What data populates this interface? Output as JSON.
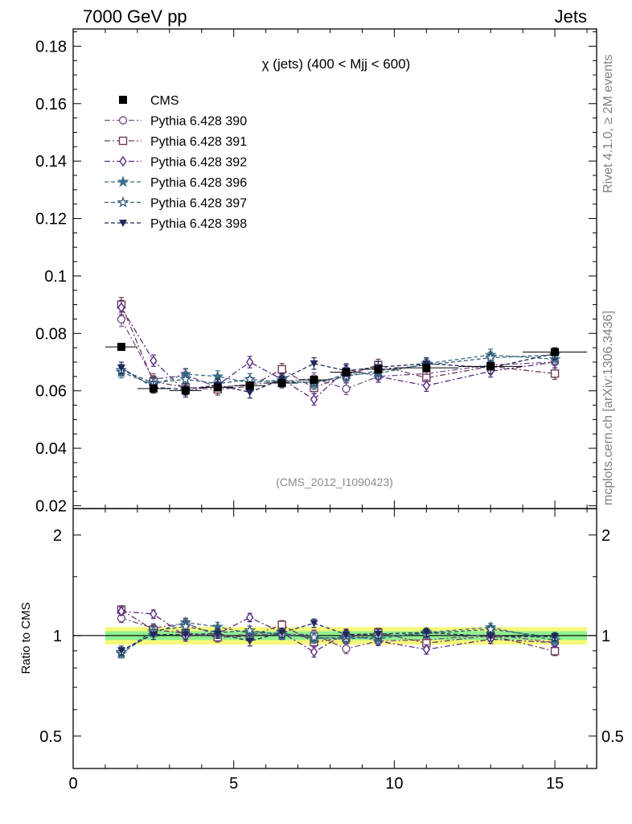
{
  "header": {
    "left": "7000 GeV pp",
    "right": "Jets"
  },
  "side_labels": {
    "rivet": "Rivet 4.1.0, ≥ 2M events",
    "source": "mcplots.cern.ch [arXiv:1306.3436]"
  },
  "colors": {
    "s390": "#7a4f86",
    "s391": "#6e3a5a",
    "s392": "#5a2a82",
    "s396": "#3d6d86",
    "s397": "#2f5a78",
    "s398": "#1f2a5a",
    "cms": "#000000",
    "band_inner": "#8ff08f",
    "band_outer": "#f4f97a"
  },
  "chart_data": [
    {
      "type": "line",
      "title": "χ (jets) (400 < Mjj <  600)",
      "watermark": "(CMS_2012_I1090423)",
      "xlim": [
        0,
        16.3
      ],
      "ylim": [
        0.019,
        0.186
      ],
      "ylabel": "",
      "yticks": [
        0.02,
        0.04,
        0.06,
        0.08,
        0.1,
        0.12,
        0.14,
        0.16,
        0.18
      ],
      "ytick_labels": [
        "0.02",
        "0.04",
        "0.06",
        "0.08",
        "0.1",
        "0.12",
        "0.14",
        "0.16",
        "0.18"
      ],
      "legend_position": "top-left",
      "x": [
        1.5,
        2.5,
        3.5,
        4.5,
        5.5,
        6.5,
        7.5,
        8.5,
        9.5,
        11,
        13,
        15
      ],
      "xerr": [
        0.5,
        0.5,
        0.5,
        0.5,
        0.5,
        0.5,
        0.5,
        0.5,
        0.5,
        1,
        1,
        1
      ],
      "cms": {
        "name": "CMS",
        "values": [
          0.0753,
          0.0608,
          0.0601,
          0.0612,
          0.0618,
          0.0627,
          0.0638,
          0.0665,
          0.0675,
          0.068,
          0.0685,
          0.0735
        ]
      },
      "series": [
        {
          "name": "Pythia 6.428 390",
          "key": "s390",
          "marker": "circle-open",
          "dash": "dashdot",
          "values": [
            0.0849,
            0.064,
            0.0655,
            0.0612,
            0.0622,
            0.0632,
            0.0643,
            0.0607,
            0.065,
            0.066,
            0.069,
            0.07
          ],
          "err": [
            0.0025,
            0.002,
            0.002,
            0.002,
            0.002,
            0.002,
            0.002,
            0.002,
            0.002,
            0.002,
            0.002,
            0.002
          ]
        },
        {
          "name": "Pythia 6.428 391",
          "key": "s391",
          "marker": "square-open",
          "dash": "dashdot",
          "values": [
            0.09,
            0.0632,
            0.0612,
            0.0605,
            0.0615,
            0.0675,
            0.061,
            0.0655,
            0.069,
            0.0645,
            0.0685,
            0.066
          ],
          "err": [
            0.0025,
            0.002,
            0.002,
            0.002,
            0.002,
            0.002,
            0.002,
            0.002,
            0.002,
            0.002,
            0.002,
            0.002
          ]
        },
        {
          "name": "Pythia 6.428 392",
          "key": "s392",
          "marker": "diamond-open",
          "dash": "dashdot",
          "values": [
            0.089,
            0.0705,
            0.0598,
            0.062,
            0.07,
            0.064,
            0.057,
            0.0675,
            0.065,
            0.0618,
            0.0668,
            0.07
          ],
          "err": [
            0.0025,
            0.002,
            0.002,
            0.002,
            0.002,
            0.002,
            0.002,
            0.002,
            0.002,
            0.002,
            0.002,
            0.002
          ]
        },
        {
          "name": "Pythia 6.428 396",
          "key": "s396",
          "marker": "star-filled",
          "dash": "dashed",
          "values": [
            0.0665,
            0.0622,
            0.0658,
            0.065,
            0.0628,
            0.0638,
            0.0625,
            0.0658,
            0.066,
            0.0695,
            0.0725,
            0.071
          ],
          "err": [
            0.002,
            0.002,
            0.002,
            0.002,
            0.002,
            0.002,
            0.002,
            0.002,
            0.002,
            0.002,
            0.002,
            0.002
          ]
        },
        {
          "name": "Pythia 6.428 397",
          "key": "s397",
          "marker": "star-open",
          "dash": "dashed",
          "values": [
            0.0672,
            0.0628,
            0.064,
            0.0625,
            0.064,
            0.063,
            0.063,
            0.065,
            0.067,
            0.069,
            0.0715,
            0.0725
          ],
          "err": [
            0.002,
            0.002,
            0.002,
            0.002,
            0.002,
            0.002,
            0.002,
            0.002,
            0.002,
            0.002,
            0.002,
            0.002
          ]
        },
        {
          "name": "Pythia 6.428 398",
          "key": "s398",
          "marker": "triangle-down",
          "dash": "dashed",
          "values": [
            0.068,
            0.0612,
            0.0605,
            0.062,
            0.0595,
            0.064,
            0.0695,
            0.067,
            0.0682,
            0.0695,
            0.068,
            0.073
          ],
          "err": [
            0.002,
            0.002,
            0.002,
            0.002,
            0.002,
            0.002,
            0.002,
            0.002,
            0.002,
            0.002,
            0.002,
            0.002
          ]
        }
      ]
    },
    {
      "type": "line",
      "title": "",
      "ylabel": "Ratio to CMS",
      "xlabel": "",
      "xlim": [
        0,
        16.3
      ],
      "ylim": [
        0.4,
        2.4
      ],
      "yscale": "log",
      "yticks": [
        0.5,
        1,
        2
      ],
      "ytick_labels": [
        "0.5",
        "1",
        "2"
      ],
      "xticks": [
        0,
        5,
        10,
        15
      ],
      "xtick_labels": [
        "0",
        "5",
        "10",
        "15"
      ],
      "band_inner": 0.03,
      "band_outer": 0.06
    }
  ]
}
